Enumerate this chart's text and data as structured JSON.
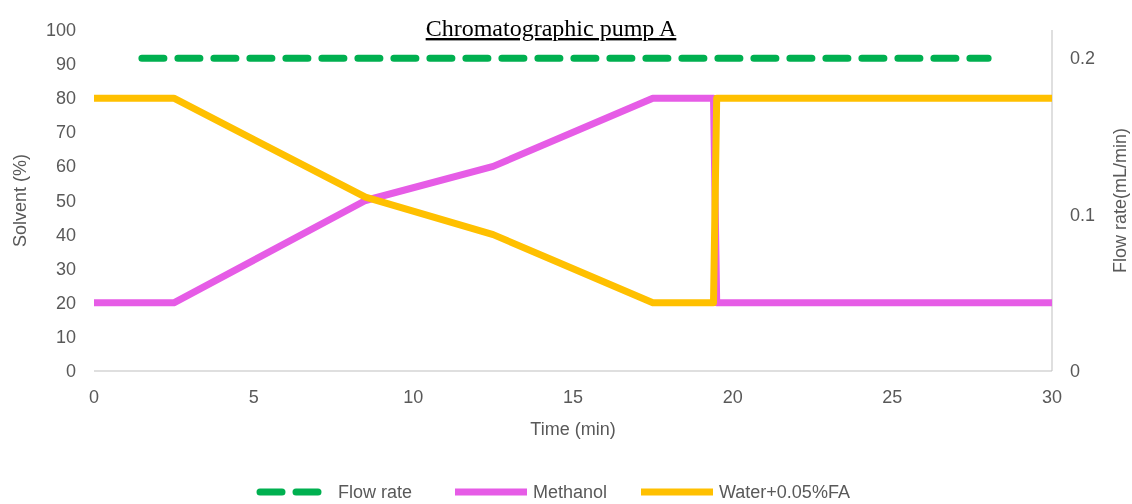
{
  "chart_data": {
    "type": "line",
    "title": "Chromatographic pump A",
    "xlabel": "Time (min)",
    "ylabel": "Solvent (%)",
    "y2label": "Flow rate(mL/min)",
    "xlim": [
      0,
      30
    ],
    "xticks": [
      0,
      5,
      10,
      15,
      20,
      25,
      30
    ],
    "ylim": [
      0,
      100
    ],
    "yticks": [
      0,
      10,
      20,
      30,
      40,
      50,
      60,
      70,
      80,
      90,
      100
    ],
    "y2lim": [
      0,
      0.218
    ],
    "y2ticks": [
      0,
      0.1,
      0.2
    ],
    "legend": "bottom",
    "grid": false,
    "marker": "none",
    "series": [
      {
        "name": "Flow rate",
        "color": "#00b050",
        "axis": "y2",
        "line_style": "dashed",
        "x": [
          1.5,
          28
        ],
        "values": [
          0.2,
          0.2
        ]
      },
      {
        "name": "Methanol",
        "color": "#e65ce6",
        "line_style": "solid",
        "x": [
          0,
          2.5,
          8.5,
          12.5,
          17.5,
          19.4,
          19.5,
          30
        ],
        "values": [
          20,
          20,
          50,
          60,
          80,
          80,
          20,
          20
        ]
      },
      {
        "name": "Water+0.05%FA",
        "color": "#ffc000",
        "line_style": "solid",
        "x": [
          0,
          2.5,
          8.5,
          12.5,
          17.5,
          19.4,
          19.5,
          30
        ],
        "values": [
          80,
          80,
          51,
          40,
          20,
          20,
          80,
          80
        ]
      }
    ]
  }
}
